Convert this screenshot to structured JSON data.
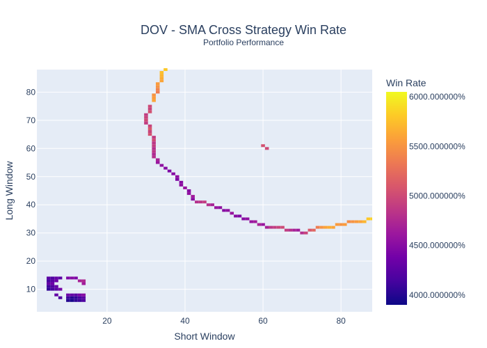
{
  "chart_data": {
    "type": "heatmap",
    "title": "DOV - SMA Cross Strategy Win Rate",
    "subtitle": "Portfolio Performance",
    "xlabel": "Short Window",
    "ylabel": "Long Window",
    "xlim": [
      2,
      88
    ],
    "ylim": [
      2,
      88
    ],
    "x_ticks": [
      20,
      40,
      60,
      80
    ],
    "y_ticks": [
      10,
      20,
      30,
      40,
      50,
      60,
      70,
      80
    ],
    "grid": true,
    "colorbar": {
      "title": "Win Rate",
      "range": [
        3900,
        6050
      ],
      "ticks": [
        {
          "value": 4000,
          "label": "4000.000000%"
        },
        {
          "value": 4500,
          "label": "4500.000000%"
        },
        {
          "value": 5000,
          "label": "5000.000000%"
        },
        {
          "value": 5500,
          "label": "5500.000000%"
        },
        {
          "value": 6000,
          "label": "6000.000000%"
        }
      ],
      "colorscale": [
        "#0d0887",
        "#46039f",
        "#7201a8",
        "#9c179e",
        "#bd3786",
        "#d8576b",
        "#ed7953",
        "#fb9f3a",
        "#fdca26",
        "#f0f921"
      ]
    },
    "cells": [
      [
        35,
        88,
        5800
      ],
      [
        34,
        87,
        5750
      ],
      [
        34,
        86,
        5700
      ],
      [
        34,
        85,
        5650
      ],
      [
        34,
        84,
        5600
      ],
      [
        33,
        83,
        5550
      ],
      [
        33,
        82,
        5500
      ],
      [
        33,
        81,
        5400
      ],
      [
        33,
        80,
        5350
      ],
      [
        32,
        79,
        5500
      ],
      [
        32,
        78,
        5550
      ],
      [
        32,
        77,
        5600
      ],
      [
        31,
        75,
        5000
      ],
      [
        31,
        74,
        4950
      ],
      [
        31,
        73,
        5050
      ],
      [
        30,
        72,
        4900
      ],
      [
        30,
        71,
        4950
      ],
      [
        30,
        70,
        5000
      ],
      [
        30,
        69,
        4900
      ],
      [
        31,
        68,
        4950
      ],
      [
        31,
        67,
        5100
      ],
      [
        31,
        66,
        4950
      ],
      [
        31,
        65,
        5050
      ],
      [
        32,
        64,
        4900
      ],
      [
        32,
        63,
        5000
      ],
      [
        32,
        62,
        4850
      ],
      [
        32,
        61,
        4900
      ],
      [
        32,
        60,
        4800
      ],
      [
        32,
        59,
        4850
      ],
      [
        32,
        58,
        4750
      ],
      [
        32,
        57,
        4800
      ],
      [
        33,
        56,
        4700
      ],
      [
        33,
        55,
        4600
      ],
      [
        34,
        54,
        4550
      ],
      [
        35,
        53,
        4500
      ],
      [
        36,
        52,
        4450
      ],
      [
        37,
        51,
        4500
      ],
      [
        38,
        50,
        4550
      ],
      [
        38,
        49,
        4450
      ],
      [
        39,
        48,
        4500
      ],
      [
        39,
        47,
        4550
      ],
      [
        40,
        46,
        4600
      ],
      [
        41,
        45,
        4500
      ],
      [
        41,
        44,
        4550
      ],
      [
        42,
        43,
        4650
      ],
      [
        42,
        42,
        4500
      ],
      [
        43,
        41,
        4800
      ],
      [
        44,
        41,
        4850
      ],
      [
        45,
        41,
        4900
      ],
      [
        46,
        40,
        4800
      ],
      [
        47,
        40,
        4700
      ],
      [
        48,
        39,
        4600
      ],
      [
        49,
        39,
        4550
      ],
      [
        50,
        38,
        4500
      ],
      [
        51,
        38,
        4550
      ],
      [
        52,
        37,
        4600
      ],
      [
        53,
        36,
        4500
      ],
      [
        54,
        36,
        4450
      ],
      [
        55,
        35,
        4500
      ],
      [
        56,
        35,
        4550
      ],
      [
        57,
        34,
        4600
      ],
      [
        58,
        34,
        4650
      ],
      [
        59,
        33,
        4700
      ],
      [
        60,
        33,
        4600
      ],
      [
        61,
        32,
        4700
      ],
      [
        62,
        32,
        4850
      ],
      [
        63,
        32,
        4900
      ],
      [
        64,
        32,
        4950
      ],
      [
        65,
        32,
        5000
      ],
      [
        66,
        31,
        4900
      ],
      [
        67,
        31,
        4800
      ],
      [
        68,
        31,
        4700
      ],
      [
        69,
        31,
        4650
      ],
      [
        70,
        30,
        4800
      ],
      [
        71,
        30,
        4950
      ],
      [
        72,
        31,
        5100
      ],
      [
        73,
        31,
        5200
      ],
      [
        74,
        32,
        5350
      ],
      [
        75,
        32,
        5500
      ],
      [
        76,
        32,
        5600
      ],
      [
        77,
        32,
        5650
      ],
      [
        78,
        32,
        5600
      ],
      [
        79,
        33,
        5550
      ],
      [
        80,
        33,
        5500
      ],
      [
        81,
        33,
        5550
      ],
      [
        82,
        34,
        5450
      ],
      [
        83,
        34,
        5500
      ],
      [
        84,
        34,
        5550
      ],
      [
        85,
        34,
        5600
      ],
      [
        86,
        34,
        5700
      ],
      [
        87,
        35,
        5800
      ],
      [
        88,
        35,
        5850
      ],
      [
        60,
        61,
        5050
      ],
      [
        61,
        60,
        5000
      ],
      [
        5,
        14,
        4250
      ],
      [
        6,
        14,
        4200
      ],
      [
        7,
        14,
        4300
      ],
      [
        8,
        14,
        4250
      ],
      [
        5,
        13,
        4150
      ],
      [
        6,
        13,
        4250
      ],
      [
        7,
        13,
        4350
      ],
      [
        5,
        12,
        4300
      ],
      [
        6,
        12,
        4350
      ],
      [
        5,
        11,
        4100
      ],
      [
        6,
        11,
        4200
      ],
      [
        7,
        11,
        4300
      ],
      [
        5,
        10,
        4050
      ],
      [
        6,
        10,
        4150
      ],
      [
        7,
        10,
        4250
      ],
      [
        8,
        10,
        4400
      ],
      [
        10,
        14,
        4450
      ],
      [
        11,
        14,
        4500
      ],
      [
        12,
        14,
        4450
      ],
      [
        13,
        13,
        4700
      ],
      [
        14,
        13,
        4750
      ],
      [
        14,
        12,
        4650
      ],
      [
        7,
        8,
        4300
      ],
      [
        8,
        7,
        4200
      ],
      [
        10,
        8,
        4350
      ],
      [
        11,
        8,
        4300
      ],
      [
        12,
        8,
        4250
      ],
      [
        13,
        8,
        4400
      ],
      [
        14,
        8,
        4500
      ],
      [
        10,
        7,
        4100
      ],
      [
        11,
        7,
        4000
      ],
      [
        12,
        7,
        4050
      ],
      [
        13,
        7,
        4150
      ],
      [
        14,
        7,
        4250
      ],
      [
        10,
        6,
        4000
      ],
      [
        11,
        6,
        3950
      ],
      [
        12,
        6,
        4050
      ],
      [
        13,
        6,
        4100
      ],
      [
        14,
        6,
        4200
      ]
    ]
  }
}
